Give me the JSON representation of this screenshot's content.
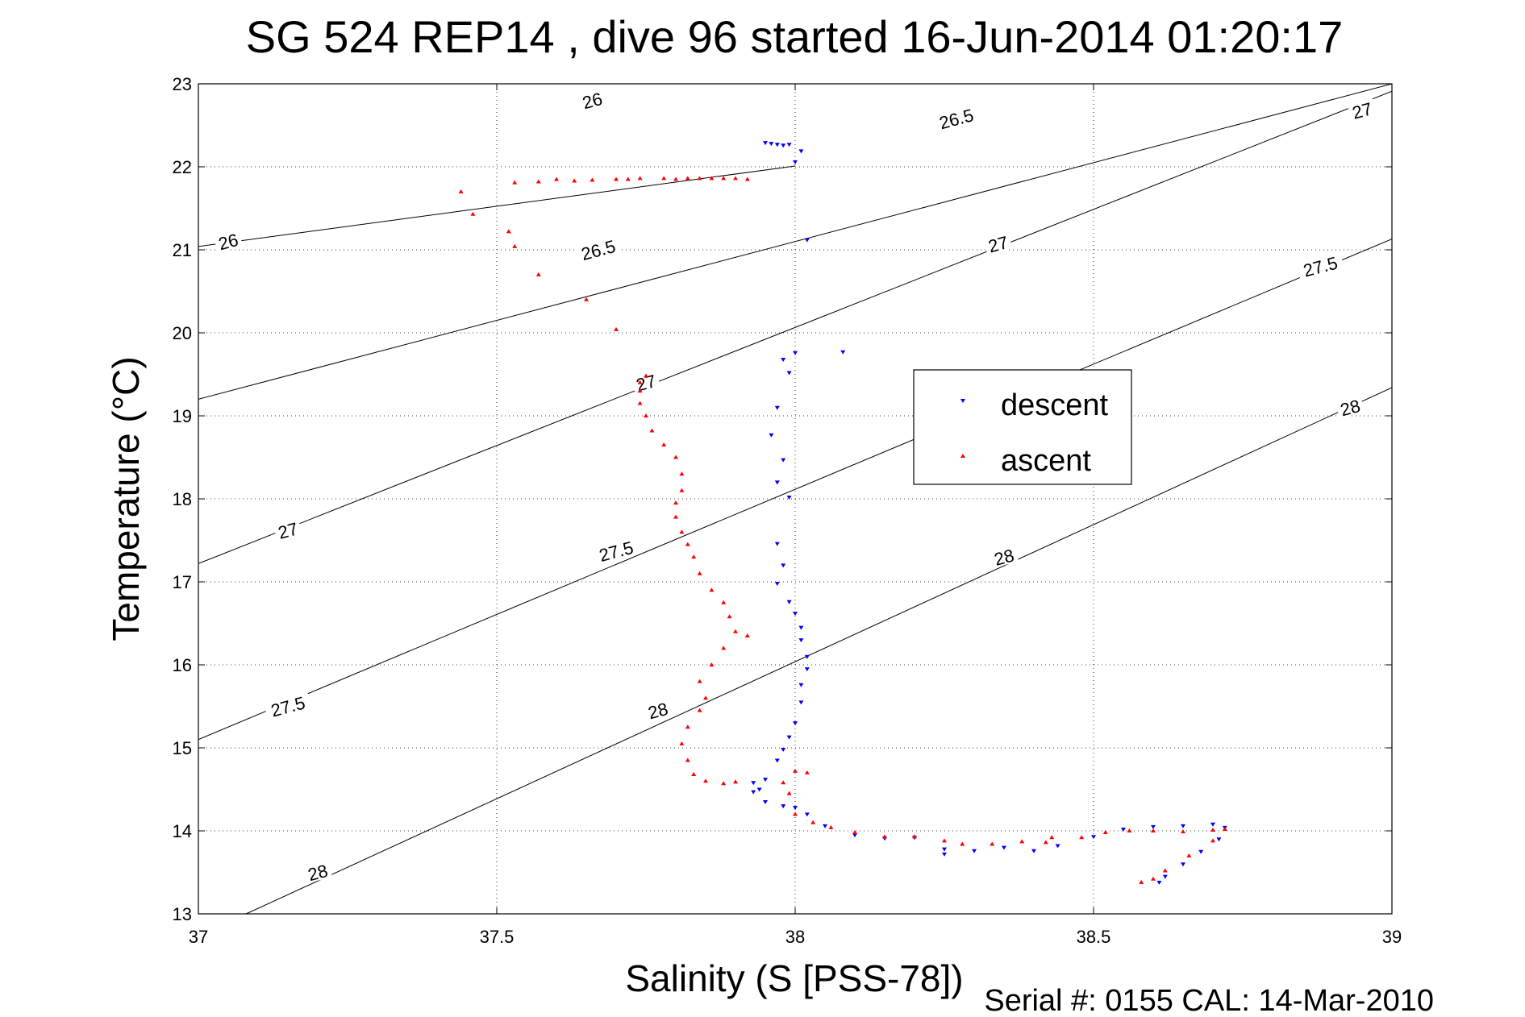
{
  "chart_data": {
    "type": "scatter",
    "title": "SG 524   REP14  , dive 96 started 16-Jun-2014 01:20:17",
    "xlabel": "Salinity (S [PSS-78])",
    "ylabel": "Temperature (°C)",
    "xlim": [
      37,
      39
    ],
    "ylim": [
      13,
      23
    ],
    "x_ticks": [
      "37",
      "37.5",
      "38",
      "38.5",
      "39"
    ],
    "y_ticks": [
      "13",
      "14",
      "15",
      "16",
      "17",
      "18",
      "19",
      "20",
      "21",
      "22",
      "23"
    ],
    "grid": true,
    "legend_position": "center-right",
    "footer": "Serial #: 0155  CAL: 14-Mar-2010",
    "isopycnals": [
      {
        "label": "26",
        "endpoints": [
          [
            37.0,
            21.04
          ],
          [
            38.0,
            22.01
          ]
        ]
      },
      {
        "label": "26.5",
        "endpoints": [
          [
            37.0,
            19.2
          ],
          [
            39.0,
            23.0
          ]
        ]
      },
      {
        "label": "27",
        "endpoints": [
          [
            37.0,
            17.22
          ],
          [
            39.0,
            22.91
          ]
        ]
      },
      {
        "label": "27.5",
        "endpoints": [
          [
            37.0,
            15.1
          ],
          [
            39.0,
            21.13
          ]
        ]
      },
      {
        "label": "28",
        "endpoints": [
          [
            37.08,
            13.0
          ],
          [
            39.0,
            19.34
          ]
        ]
      }
    ],
    "isopycnal_labels": [
      {
        "text": "26",
        "x": 37.66,
        "y": 22.8
      },
      {
        "text": "26",
        "x": 37.05,
        "y": 21.1
      },
      {
        "text": "26.5",
        "x": 38.27,
        "y": 22.58
      },
      {
        "text": "26.5",
        "x": 37.67,
        "y": 21.0
      },
      {
        "text": "27",
        "x": 38.95,
        "y": 22.68
      },
      {
        "text": "27",
        "x": 38.34,
        "y": 21.07
      },
      {
        "text": "27",
        "x": 37.75,
        "y": 19.4
      },
      {
        "text": "27",
        "x": 37.15,
        "y": 17.62
      },
      {
        "text": "27.5",
        "x": 38.88,
        "y": 20.8
      },
      {
        "text": "27.5",
        "x": 37.7,
        "y": 17.37
      },
      {
        "text": "27.5",
        "x": 37.15,
        "y": 15.5
      },
      {
        "text": "28",
        "x": 38.93,
        "y": 19.1
      },
      {
        "text": "28",
        "x": 38.35,
        "y": 17.3
      },
      {
        "text": "28",
        "x": 37.77,
        "y": 15.45
      },
      {
        "text": "28",
        "x": 37.2,
        "y": 13.5
      }
    ],
    "series": [
      {
        "name": "descent",
        "color": "#0000ff",
        "marker": "triangle-down",
        "points": [
          [
            37.95,
            22.29
          ],
          [
            37.96,
            22.28
          ],
          [
            37.97,
            22.27
          ],
          [
            37.98,
            22.26
          ],
          [
            37.99,
            22.27
          ],
          [
            38.0,
            22.06
          ],
          [
            38.01,
            22.19
          ],
          [
            38.02,
            21.12
          ],
          [
            38.08,
            19.77
          ],
          [
            38.0,
            19.76
          ],
          [
            37.98,
            19.68
          ],
          [
            37.99,
            19.52
          ],
          [
            37.97,
            19.1
          ],
          [
            37.96,
            18.77
          ],
          [
            37.98,
            18.47
          ],
          [
            37.97,
            18.2
          ],
          [
            37.99,
            18.02
          ],
          [
            37.97,
            17.46
          ],
          [
            37.98,
            17.2
          ],
          [
            37.97,
            16.98
          ],
          [
            37.99,
            16.76
          ],
          [
            38.0,
            16.62
          ],
          [
            38.01,
            16.45
          ],
          [
            38.01,
            16.3
          ],
          [
            38.02,
            16.1
          ],
          [
            38.02,
            15.95
          ],
          [
            38.01,
            15.76
          ],
          [
            38.01,
            15.55
          ],
          [
            38.0,
            15.3
          ],
          [
            37.99,
            15.13
          ],
          [
            37.98,
            14.98
          ],
          [
            37.97,
            14.85
          ],
          [
            37.95,
            14.62
          ],
          [
            37.93,
            14.58
          ],
          [
            37.93,
            14.47
          ],
          [
            37.94,
            14.5
          ],
          [
            37.95,
            14.35
          ],
          [
            37.98,
            14.3
          ],
          [
            38.0,
            14.28
          ],
          [
            38.02,
            14.2
          ],
          [
            38.05,
            14.06
          ],
          [
            38.1,
            13.95
          ],
          [
            38.15,
            13.91
          ],
          [
            38.2,
            13.92
          ],
          [
            38.25,
            13.78
          ],
          [
            38.25,
            13.72
          ],
          [
            38.3,
            13.76
          ],
          [
            38.35,
            13.8
          ],
          [
            38.4,
            13.76
          ],
          [
            38.44,
            13.82
          ],
          [
            38.5,
            13.93
          ],
          [
            38.55,
            14.02
          ],
          [
            38.6,
            14.05
          ],
          [
            38.65,
            14.06
          ],
          [
            38.7,
            14.08
          ],
          [
            38.72,
            14.04
          ],
          [
            38.71,
            13.9
          ],
          [
            38.68,
            13.75
          ],
          [
            38.65,
            13.6
          ],
          [
            38.62,
            13.45
          ],
          [
            38.61,
            13.38
          ]
        ]
      },
      {
        "name": "ascent",
        "color": "#ff0000",
        "marker": "triangle-up",
        "points": [
          [
            37.92,
            21.85
          ],
          [
            37.9,
            21.86
          ],
          [
            37.88,
            21.86
          ],
          [
            37.86,
            21.86
          ],
          [
            37.84,
            21.86
          ],
          [
            37.82,
            21.86
          ],
          [
            37.8,
            21.85
          ],
          [
            37.78,
            21.86
          ],
          [
            37.74,
            21.86
          ],
          [
            37.72,
            21.85
          ],
          [
            37.7,
            21.85
          ],
          [
            37.66,
            21.84
          ],
          [
            37.63,
            21.83
          ],
          [
            37.6,
            21.85
          ],
          [
            37.57,
            21.82
          ],
          [
            37.53,
            21.81
          ],
          [
            37.44,
            21.7
          ],
          [
            37.46,
            21.43
          ],
          [
            37.52,
            21.22
          ],
          [
            37.53,
            21.04
          ],
          [
            37.57,
            20.7
          ],
          [
            37.65,
            20.4
          ],
          [
            37.7,
            20.04
          ],
          [
            37.75,
            19.48
          ],
          [
            37.74,
            19.4
          ],
          [
            37.74,
            19.3
          ],
          [
            37.74,
            19.15
          ],
          [
            37.75,
            19.0
          ],
          [
            37.76,
            18.82
          ],
          [
            37.78,
            18.65
          ],
          [
            37.8,
            18.5
          ],
          [
            37.81,
            18.3
          ],
          [
            37.81,
            18.1
          ],
          [
            37.8,
            17.95
          ],
          [
            37.8,
            17.78
          ],
          [
            37.81,
            17.6
          ],
          [
            37.82,
            17.45
          ],
          [
            37.83,
            17.3
          ],
          [
            37.84,
            17.1
          ],
          [
            37.86,
            16.9
          ],
          [
            37.88,
            16.75
          ],
          [
            37.89,
            16.58
          ],
          [
            37.9,
            16.4
          ],
          [
            37.92,
            16.35
          ],
          [
            37.88,
            16.2
          ],
          [
            37.86,
            16.0
          ],
          [
            37.84,
            15.8
          ],
          [
            37.85,
            15.6
          ],
          [
            37.84,
            15.45
          ],
          [
            37.82,
            15.25
          ],
          [
            37.81,
            15.05
          ],
          [
            37.82,
            14.85
          ],
          [
            37.83,
            14.68
          ],
          [
            37.85,
            14.6
          ],
          [
            37.88,
            14.57
          ],
          [
            37.9,
            14.59
          ],
          [
            37.98,
            14.58
          ],
          [
            38.0,
            14.72
          ],
          [
            38.02,
            14.7
          ],
          [
            37.99,
            14.45
          ],
          [
            38.0,
            14.2
          ],
          [
            38.03,
            14.1
          ],
          [
            38.06,
            14.04
          ],
          [
            38.1,
            13.98
          ],
          [
            38.15,
            13.93
          ],
          [
            38.2,
            13.93
          ],
          [
            38.25,
            13.88
          ],
          [
            38.28,
            13.84
          ],
          [
            38.33,
            13.84
          ],
          [
            38.38,
            13.87
          ],
          [
            38.42,
            13.86
          ],
          [
            38.43,
            13.92
          ],
          [
            38.48,
            13.92
          ],
          [
            38.52,
            13.98
          ],
          [
            38.56,
            14.0
          ],
          [
            38.6,
            14.0
          ],
          [
            38.65,
            13.99
          ],
          [
            38.7,
            14.01
          ],
          [
            38.72,
            14.02
          ],
          [
            38.7,
            13.88
          ],
          [
            38.66,
            13.7
          ],
          [
            38.62,
            13.52
          ],
          [
            38.6,
            13.42
          ],
          [
            38.58,
            13.38
          ]
        ]
      }
    ]
  }
}
